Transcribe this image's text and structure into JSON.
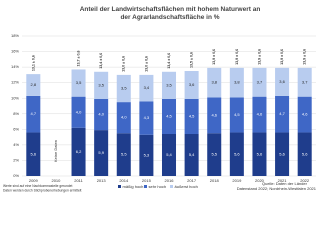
{
  "chart_data": {
    "type": "stacked-bar",
    "title": "Anteil der Landwirtschaftsflächen mit hohem Naturwert an der Agrarlandschaftsfläche in %",
    "categories": [
      "2009",
      "2010",
      "2011",
      "2013",
      "2014",
      "2015",
      "2016",
      "2017",
      "2018",
      "2019",
      "2020",
      "2021",
      "2022"
    ],
    "series": [
      {
        "name": "mäßig hoch",
        "color": "#1f3d8c",
        "values": [
          5.6,
          null,
          6.2,
          5.9,
          5.5,
          5.3,
          5.4,
          5.4,
          5.5,
          5.6,
          5.6,
          5.6,
          5.6
        ],
        "value_labels": [
          "5,6",
          null,
          "6,2",
          "5,9",
          "5,5",
          "5,3",
          "5,4",
          "5,4",
          "5,5",
          "5,6",
          "5,6",
          "5,6",
          "5,6"
        ]
      },
      {
        "name": "sehr hoch",
        "color": "#3f67c6",
        "values": [
          4.7,
          null,
          4.0,
          4.0,
          4.0,
          4.3,
          4.5,
          4.5,
          4.6,
          4.5,
          4.6,
          4.7,
          4.6
        ],
        "value_labels": [
          "4,7",
          null,
          "4,0",
          "4,0",
          "4,0",
          "4,3",
          "4,5",
          "4,5",
          "4,6",
          "4,5",
          "4,6",
          "4,7",
          "4,6"
        ]
      },
      {
        "name": "äußerst hoch",
        "color": "#b8ccef",
        "values": [
          2.8,
          null,
          3.5,
          3.5,
          3.5,
          3.4,
          3.5,
          3.6,
          3.8,
          3.8,
          3.7,
          3.6,
          3.7
        ],
        "value_labels": [
          "2,8",
          null,
          "3,5",
          "3,5",
          "3,5",
          "3,4",
          "3,5",
          "3,6",
          "3,8",
          "3,8",
          "3,7",
          "3,6",
          "3,7"
        ]
      }
    ],
    "total_labels": [
      "13,1 ± 0,6",
      null,
      "13,7 ± 0,6",
      "13,4 ± 0,6",
      "13,0 ± 0,6",
      "13,0 ± 0,6",
      "13,4 ± 0,6",
      "13,5 ± 0,6",
      "13,9 ± 0,6",
      "13,9 ± 0,6",
      "13,9 ± 0,6",
      "13,9 ± 0,6",
      "13,9 ± 0,6"
    ],
    "missing_label": "Keine Daten",
    "ylim": [
      0,
      18
    ],
    "yticks": [
      {
        "value": 0,
        "label": "0%"
      },
      {
        "value": 2,
        "label": "2%"
      },
      {
        "value": 4,
        "label": "4%"
      },
      {
        "value": 6,
        "label": "6%"
      },
      {
        "value": 8,
        "label": "8%"
      },
      {
        "value": 10,
        "label": "10%"
      },
      {
        "value": 12,
        "label": "12%"
      },
      {
        "value": 14,
        "label": "14%"
      },
      {
        "value": 16,
        "label": "16%"
      },
      {
        "value": 18,
        "label": "18%"
      }
    ],
    "grid": true,
    "source": "Quelle: Daten der Länder",
    "source_note": "Datenstand 2022; Nordrhein-Westfalen 2021",
    "notes": [
      "Werte sind auf eine Nachkommastelle gerundet",
      "Daten werden durch Stichprobenerhebungen ermittelt"
    ]
  }
}
